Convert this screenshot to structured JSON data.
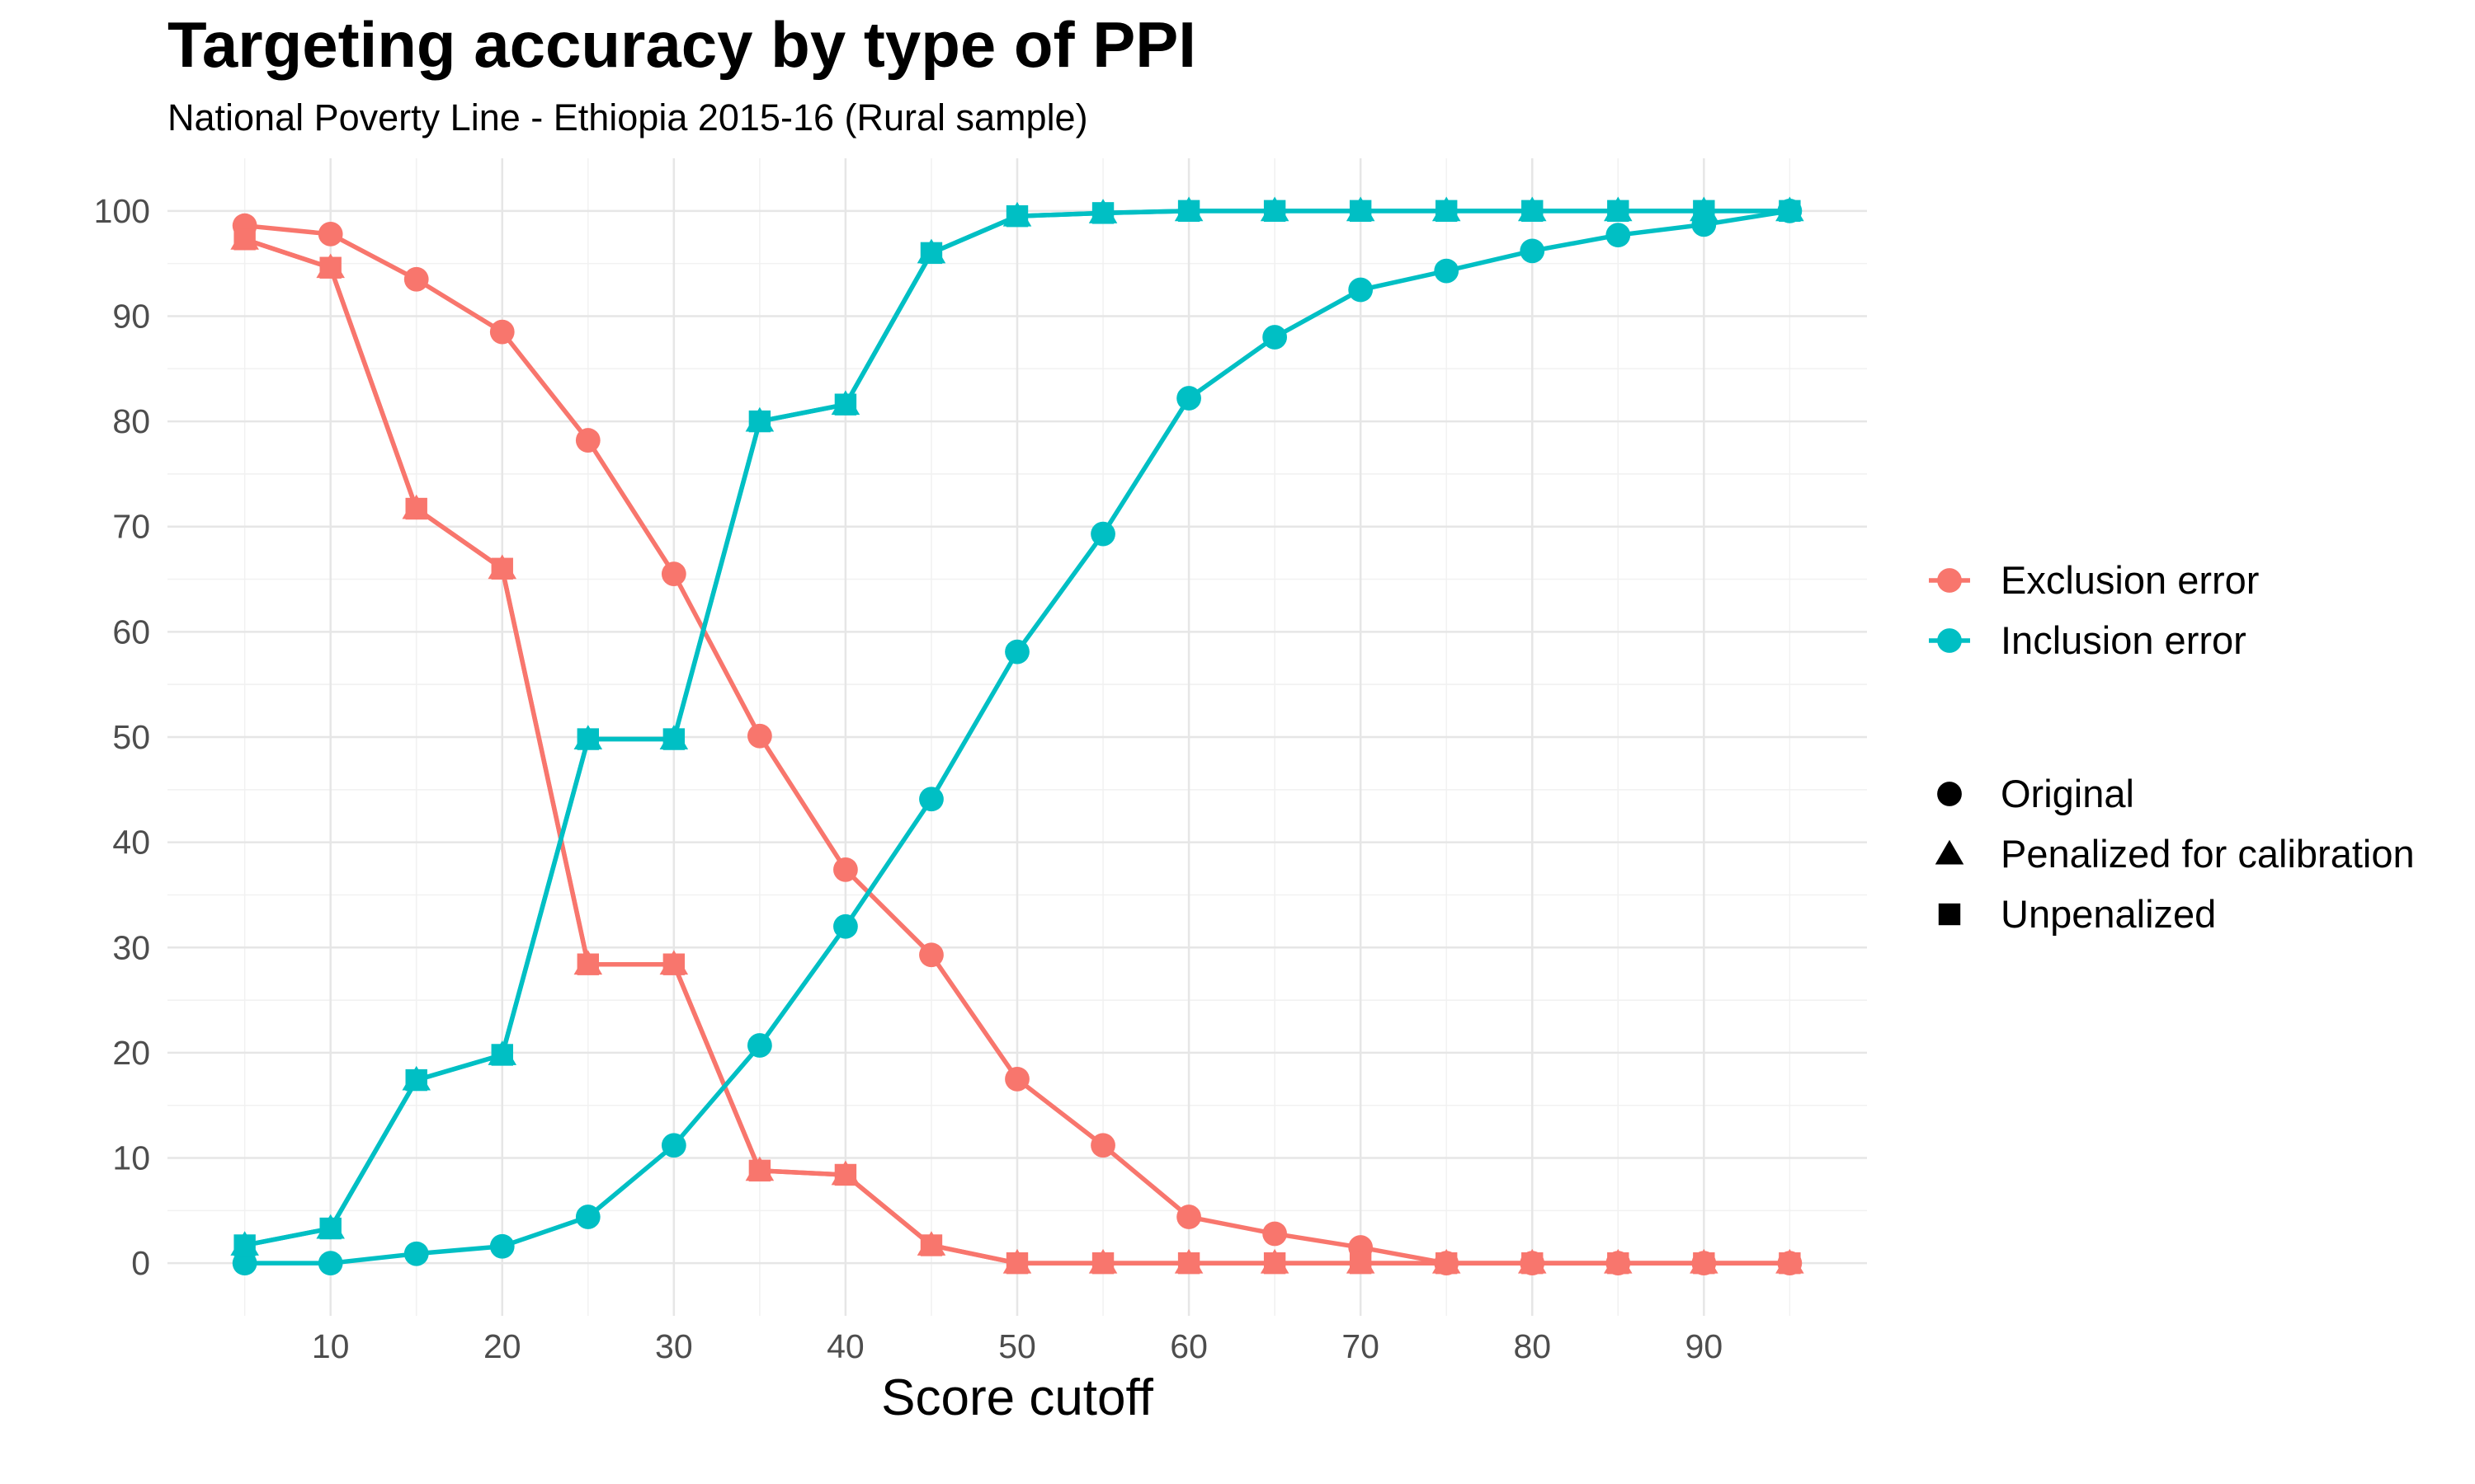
{
  "chart_data": {
    "type": "line",
    "title": "Targeting accuracy by type of PPI",
    "subtitle": "National Poverty Line - Ethiopia 2015-16 (Rural sample)",
    "xlabel": "Score cutoff",
    "ylabel": "",
    "xlim": [
      0.5,
      99.5
    ],
    "ylim": [
      -5,
      105
    ],
    "xticks": [
      10,
      20,
      30,
      40,
      50,
      60,
      70,
      80,
      90
    ],
    "yticks": [
      0,
      10,
      20,
      30,
      40,
      50,
      60,
      70,
      80,
      90,
      100
    ],
    "grid": true,
    "x": [
      5,
      10,
      15,
      20,
      25,
      30,
      35,
      40,
      45,
      50,
      55,
      60,
      65,
      70,
      75,
      80,
      85,
      90,
      95
    ],
    "series": [
      {
        "name": "Exclusion error",
        "type": "Original",
        "color": "#F8766D",
        "shape": "circle",
        "values": [
          98.6,
          97.8,
          93.5,
          88.5,
          78.2,
          65.5,
          50.1,
          37.4,
          29.3,
          17.5,
          11.2,
          4.4,
          2.8,
          1.5,
          0,
          0,
          0,
          0,
          0
        ]
      },
      {
        "name": "Exclusion error",
        "type": "Penalized for calibration",
        "color": "#F8766D",
        "shape": "triangle",
        "values": [
          97.3,
          94.6,
          71.7,
          66.0,
          28.4,
          28.4,
          8.8,
          8.4,
          1.7,
          0,
          0,
          0,
          0,
          0,
          0,
          0,
          0,
          0,
          0
        ]
      },
      {
        "name": "Exclusion error",
        "type": "Unpenalized",
        "color": "#F8766D",
        "shape": "square",
        "values": [
          97.3,
          94.6,
          71.7,
          66.0,
          28.4,
          28.4,
          8.8,
          8.4,
          1.7,
          0,
          0,
          0,
          0,
          0,
          0,
          0,
          0,
          0,
          0
        ]
      },
      {
        "name": "Inclusion error",
        "type": "Original",
        "color": "#00BFC4",
        "shape": "circle",
        "values": [
          0,
          0,
          0.9,
          1.6,
          4.4,
          11.2,
          20.7,
          32.0,
          44.1,
          58.1,
          69.3,
          82.2,
          88.0,
          92.5,
          94.3,
          96.2,
          97.7,
          98.7,
          100
        ]
      },
      {
        "name": "Inclusion error",
        "type": "Penalized for calibration",
        "color": "#00BFC4",
        "shape": "triangle",
        "values": [
          1.7,
          3.3,
          17.4,
          19.8,
          49.8,
          49.8,
          80.0,
          81.6,
          96.0,
          99.5,
          99.8,
          100,
          100,
          100,
          100,
          100,
          100,
          100,
          100
        ]
      },
      {
        "name": "Inclusion error",
        "type": "Unpenalized",
        "color": "#00BFC4",
        "shape": "square",
        "values": [
          1.7,
          3.3,
          17.4,
          19.8,
          49.8,
          49.8,
          80.0,
          81.6,
          96.0,
          99.5,
          99.8,
          100,
          100,
          100,
          100,
          100,
          100,
          100,
          100
        ]
      }
    ],
    "legend": {
      "placement": "right",
      "color_entries": [
        {
          "label": "Exclusion error",
          "color": "#F8766D"
        },
        {
          "label": "Inclusion error",
          "color": "#00BFC4"
        }
      ],
      "shape_entries": [
        {
          "label": "Original",
          "shape": "circle"
        },
        {
          "label": "Penalized for calibration",
          "shape": "triangle"
        },
        {
          "label": "Unpenalized",
          "shape": "square"
        }
      ]
    }
  }
}
